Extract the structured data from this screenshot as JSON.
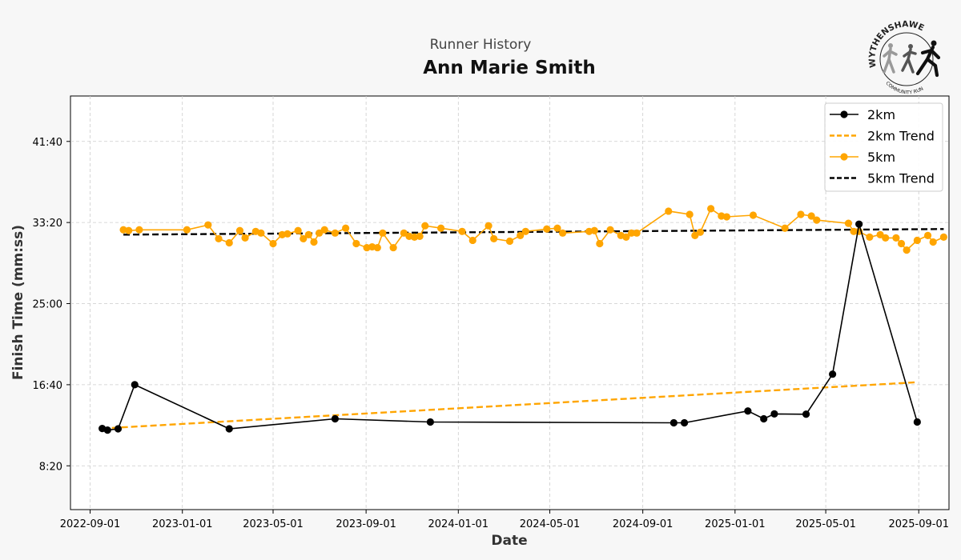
{
  "header": {
    "subtitle": "Runner History",
    "title": "Ann Marie Smith"
  },
  "logo": {
    "top_text": "WYTHENSHAWE",
    "bottom_text": "COMMUNITY RUN",
    "icon": "running-figures-logo"
  },
  "colors": {
    "series_2km": "#000000",
    "series_5km": "#FFA500",
    "background": "#f7f7f7",
    "plot_bg": "#ffffff"
  },
  "chart_data": {
    "type": "line",
    "xlabel": "Date",
    "ylabel": "Finish Time (mm:ss)",
    "x_ticks": [
      "2022-09-01",
      "2023-01-01",
      "2023-05-01",
      "2023-09-01",
      "2024-01-01",
      "2024-05-01",
      "2024-09-01",
      "2025-01-01",
      "2025-05-01",
      "2025-09-01"
    ],
    "y_ticks": [
      "8:20",
      "16:40",
      "25:00",
      "33:20",
      "41:40"
    ],
    "xlim": [
      "2022-08-06",
      "2025-10-11"
    ],
    "ylim": [
      "3:50",
      "46:20"
    ],
    "grid": true,
    "legend_position": "top-right",
    "legend": [
      "2km",
      "2km Trend",
      "5km",
      "5km Trend"
    ],
    "series": [
      {
        "name": "2km",
        "style": "line-markers",
        "points": [
          [
            "2022-09-17",
            "12:10"
          ],
          [
            "2022-09-24",
            "12:00"
          ],
          [
            "2022-10-08",
            "12:08"
          ],
          [
            "2022-10-30",
            "16:40"
          ],
          [
            "2023-03-04",
            "12:08"
          ],
          [
            "2023-07-22",
            "13:10"
          ],
          [
            "2023-11-25",
            "12:50"
          ],
          [
            "2024-10-12",
            "12:45"
          ],
          [
            "2024-10-26",
            "12:45"
          ],
          [
            "2025-01-18",
            "13:58"
          ],
          [
            "2025-02-08",
            "13:10"
          ],
          [
            "2025-02-22",
            "13:40"
          ],
          [
            "2025-04-05",
            "13:38"
          ],
          [
            "2025-05-10",
            "17:45"
          ],
          [
            "2025-06-14",
            "33:10"
          ],
          [
            "2025-08-30",
            "12:50"
          ]
        ]
      },
      {
        "name": "2km Trend",
        "style": "dashed",
        "points": [
          [
            "2022-09-17",
            "12:10"
          ],
          [
            "2025-08-30",
            "16:55"
          ]
        ]
      },
      {
        "name": "5km",
        "style": "line-markers",
        "points": [
          [
            "2022-10-15",
            "32:35"
          ],
          [
            "2022-10-22",
            "32:30"
          ],
          [
            "2022-11-05",
            "32:35"
          ],
          [
            "2023-01-07",
            "32:35"
          ],
          [
            "2023-02-04",
            "33:05"
          ],
          [
            "2023-02-18",
            "31:40"
          ],
          [
            "2023-03-04",
            "31:15"
          ],
          [
            "2023-03-18",
            "32:30"
          ],
          [
            "2023-03-25",
            "31:45"
          ],
          [
            "2023-04-08",
            "32:25"
          ],
          [
            "2023-04-15",
            "32:15"
          ],
          [
            "2023-05-01",
            "31:10"
          ],
          [
            "2023-05-13",
            "32:05"
          ],
          [
            "2023-05-20",
            "32:10"
          ],
          [
            "2023-06-03",
            "32:30"
          ],
          [
            "2023-06-10",
            "31:40"
          ],
          [
            "2023-06-17",
            "32:05"
          ],
          [
            "2023-06-24",
            "31:20"
          ],
          [
            "2023-07-01",
            "32:15"
          ],
          [
            "2023-07-08",
            "32:35"
          ],
          [
            "2023-07-22",
            "32:15"
          ],
          [
            "2023-08-05",
            "32:45"
          ],
          [
            "2023-08-19",
            "31:10"
          ],
          [
            "2023-09-02",
            "30:45"
          ],
          [
            "2023-09-09",
            "30:50"
          ],
          [
            "2023-09-16",
            "30:45"
          ],
          [
            "2023-09-23",
            "32:15"
          ],
          [
            "2023-10-07",
            "30:45"
          ],
          [
            "2023-10-21",
            "32:15"
          ],
          [
            "2023-10-28",
            "31:55"
          ],
          [
            "2023-11-04",
            "31:50"
          ],
          [
            "2023-11-11",
            "31:55"
          ],
          [
            "2023-11-18",
            "33:00"
          ],
          [
            "2023-12-09",
            "32:45"
          ],
          [
            "2024-01-06",
            "32:25"
          ],
          [
            "2024-01-20",
            "31:30"
          ],
          [
            "2024-02-10",
            "33:00"
          ],
          [
            "2024-02-17",
            "31:40"
          ],
          [
            "2024-03-09",
            "31:25"
          ],
          [
            "2024-03-23",
            "32:00"
          ],
          [
            "2024-03-30",
            "32:25"
          ],
          [
            "2024-04-27",
            "32:40"
          ],
          [
            "2024-05-11",
            "32:45"
          ],
          [
            "2024-05-18",
            "32:15"
          ],
          [
            "2024-06-22",
            "32:25"
          ],
          [
            "2024-06-29",
            "32:30"
          ],
          [
            "2024-07-06",
            "31:10"
          ],
          [
            "2024-07-20",
            "32:35"
          ],
          [
            "2024-08-03",
            "32:00"
          ],
          [
            "2024-08-10",
            "31:50"
          ],
          [
            "2024-08-17",
            "32:15"
          ],
          [
            "2024-08-24",
            "32:15"
          ],
          [
            "2024-10-05",
            "34:30"
          ],
          [
            "2024-11-02",
            "34:10"
          ],
          [
            "2024-11-09",
            "32:00"
          ],
          [
            "2024-11-16",
            "32:20"
          ],
          [
            "2024-11-30",
            "34:45"
          ],
          [
            "2024-12-14",
            "34:00"
          ],
          [
            "2024-12-21",
            "33:55"
          ],
          [
            "2025-01-25",
            "34:05"
          ],
          [
            "2025-03-08",
            "32:45"
          ],
          [
            "2025-03-29",
            "34:10"
          ],
          [
            "2025-04-12",
            "34:00"
          ],
          [
            "2025-04-19",
            "33:35"
          ],
          [
            "2025-05-31",
            "33:15"
          ],
          [
            "2025-06-07",
            "32:25"
          ],
          [
            "2025-06-14",
            "32:25"
          ],
          [
            "2025-06-28",
            "31:50"
          ],
          [
            "2025-07-12",
            "32:05"
          ],
          [
            "2025-07-19",
            "31:45"
          ],
          [
            "2025-08-02",
            "31:45"
          ],
          [
            "2025-08-09",
            "31:10"
          ],
          [
            "2025-08-16",
            "30:30"
          ],
          [
            "2025-08-30",
            "31:30"
          ],
          [
            "2025-09-13",
            "32:00"
          ],
          [
            "2025-09-20",
            "31:20"
          ],
          [
            "2025-10-04",
            "31:50"
          ]
        ]
      },
      {
        "name": "5km Trend",
        "style": "dashed",
        "points": [
          [
            "2022-10-15",
            "32:05"
          ],
          [
            "2025-10-04",
            "32:40"
          ]
        ]
      }
    ]
  }
}
